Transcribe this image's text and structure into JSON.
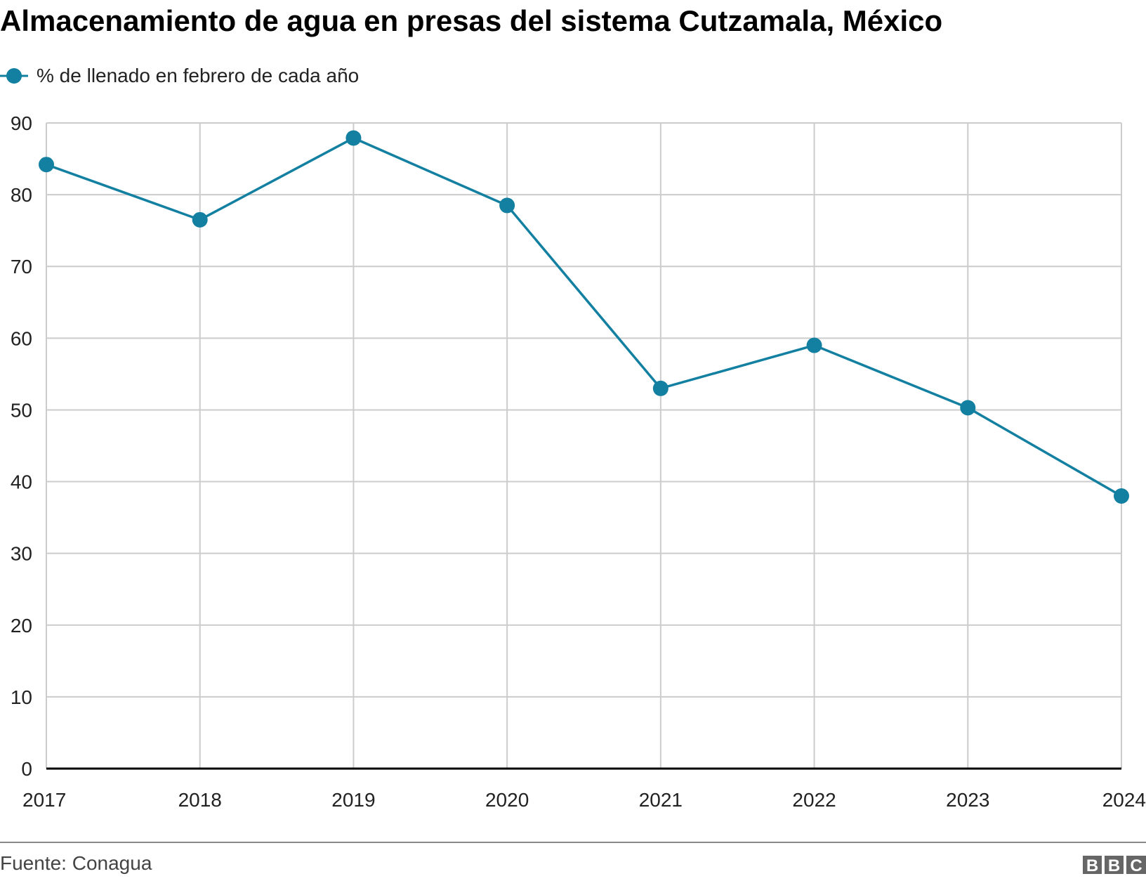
{
  "chart_data": {
    "type": "line",
    "title": "Almacenamiento de agua en presas del sistema Cutzamala, México",
    "legend": {
      "label": "% de llenado en febrero de cada año",
      "placement": "top-left"
    },
    "xlabel": "",
    "ylabel": "",
    "categories": [
      "2017",
      "2018",
      "2019",
      "2020",
      "2021",
      "2022",
      "2023",
      "2024"
    ],
    "series": [
      {
        "name": "% de llenado en febrero de cada año",
        "values": [
          84.2,
          76.5,
          87.9,
          78.5,
          53.0,
          59.0,
          50.3,
          38.0
        ]
      }
    ],
    "ylim": [
      0,
      90
    ],
    "yticks": [
      "0",
      "10",
      "20",
      "30",
      "40",
      "50",
      "60",
      "70",
      "80",
      "90"
    ],
    "grid": true,
    "color": "#1380A1"
  },
  "footer": {
    "source": "Fuente: Conagua",
    "logo": "BBC"
  }
}
